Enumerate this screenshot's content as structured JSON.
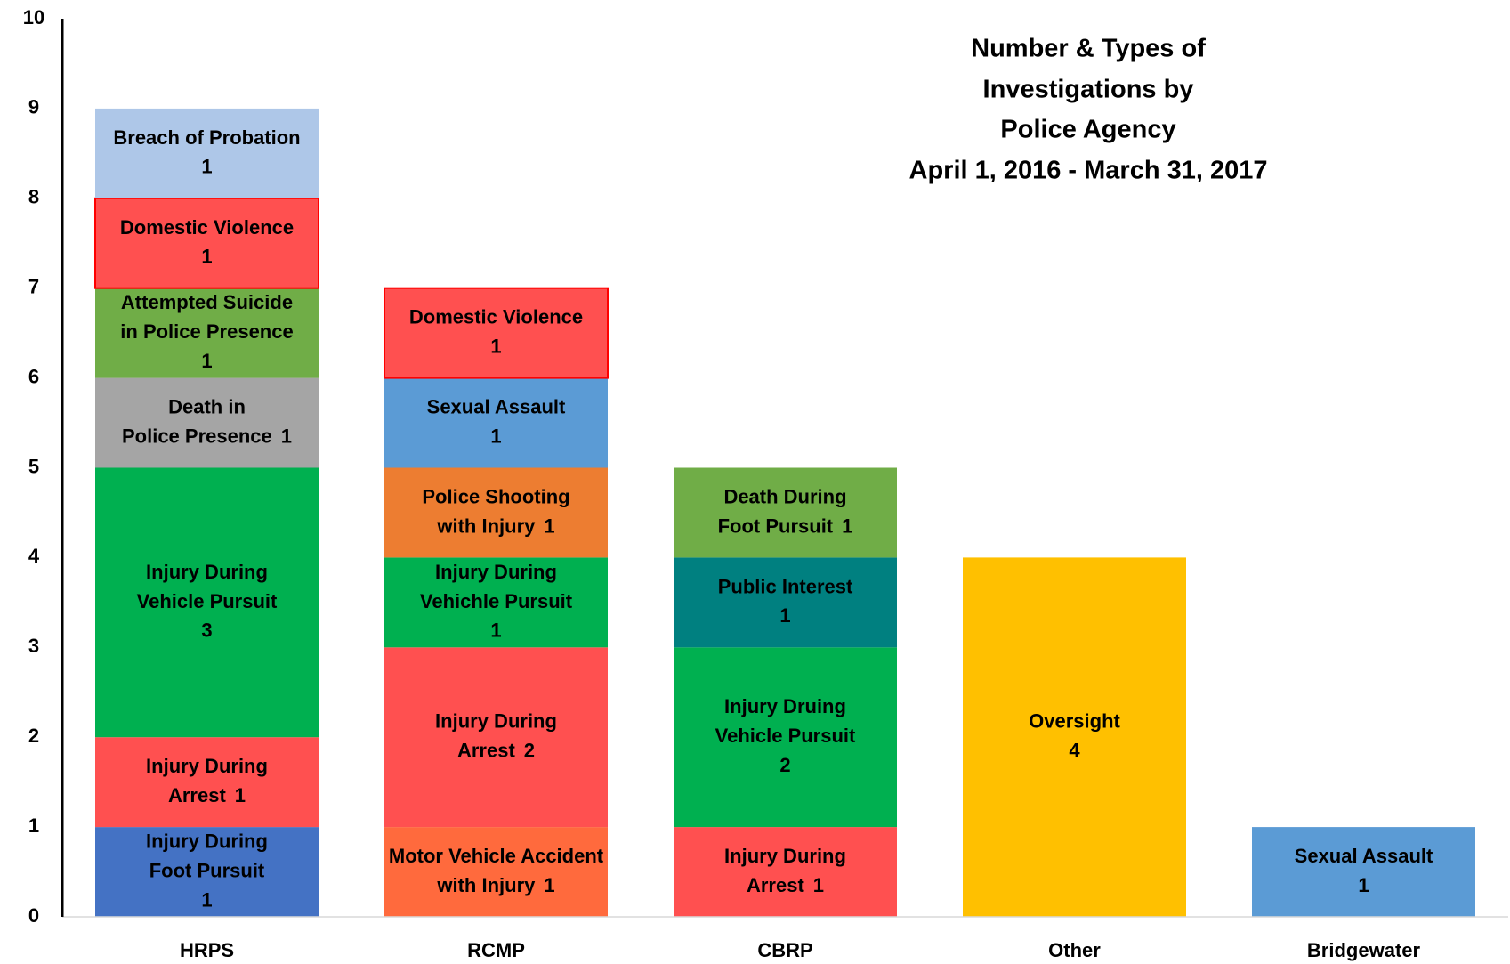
{
  "chart_data": {
    "type": "stacked-bar",
    "title": [
      "Number & Types of",
      "Investigations by",
      "Police Agency"
    ],
    "subtitle": "April 1, 2016 - March 31, 2017",
    "ylim": [
      0,
      10
    ],
    "yticks": [
      0,
      1,
      2,
      3,
      4,
      5,
      6,
      7,
      8,
      9,
      10
    ],
    "grid": false,
    "bars": [
      {
        "category": "HRPS",
        "segments": [
          {
            "label": [
              "Injury During",
              "Foot Pursuit"
            ],
            "value": 1,
            "color": "#4472c4"
          },
          {
            "label": [
              "Injury During",
              "Arrest"
            ],
            "value": 1,
            "color": "#ff5050"
          },
          {
            "label": [
              "Injury During",
              "Vehicle Pursuit"
            ],
            "value": 3,
            "color": "#00b050"
          },
          {
            "label": [
              "Death in",
              "Police Presence"
            ],
            "value": 1,
            "color": "#a5a5a5"
          },
          {
            "label": [
              "Attempted Suicide",
              "in Police Presence"
            ],
            "value": 1,
            "color": "#70ad47"
          },
          {
            "label": [
              "Domestic Violence"
            ],
            "value": 1,
            "color": "#ff5050",
            "stroke": "#ff0000"
          },
          {
            "label": [
              "Breach of Probation"
            ],
            "value": 1,
            "color": "#aec7e8"
          }
        ]
      },
      {
        "category": "RCMP",
        "segments": [
          {
            "label": [
              "Motor Vehicle Accident",
              "with Injury"
            ],
            "value": 1,
            "color": "#ff6a3d"
          },
          {
            "label": [
              "Injury During",
              "Arrest"
            ],
            "value": 2,
            "color": "#ff5050"
          },
          {
            "label": [
              "Injury During",
              "Vehichle Pursuit"
            ],
            "value": 1,
            "color": "#00b050"
          },
          {
            "label": [
              "Police Shooting",
              "with Injury"
            ],
            "value": 1,
            "color": "#ed7d31"
          },
          {
            "label": [
              "Sexual Assault"
            ],
            "value": 1,
            "color": "#5b9bd5"
          },
          {
            "label": [
              "Domestic Violence"
            ],
            "value": 1,
            "color": "#ff5050",
            "stroke": "#ff0000"
          }
        ]
      },
      {
        "category": "CBRP",
        "segments": [
          {
            "label": [
              "Injury During",
              "Arrest"
            ],
            "value": 1,
            "color": "#ff5050"
          },
          {
            "label": [
              "Injury Druing",
              "Vehicle Pursuit"
            ],
            "value": 2,
            "color": "#00b050"
          },
          {
            "label": [
              "Public Interest"
            ],
            "value": 1,
            "color": "#008080"
          },
          {
            "label": [
              "Death During",
              "Foot Pursuit"
            ],
            "value": 1,
            "color": "#70ad47"
          }
        ]
      },
      {
        "category": "Other",
        "segments": [
          {
            "label": [
              "Oversight"
            ],
            "value": 4,
            "color": "#ffc000"
          }
        ]
      },
      {
        "category": "Bridgewater",
        "segments": [
          {
            "label": [
              "Sexual Assault"
            ],
            "value": 1,
            "color": "#5b9bd5"
          }
        ]
      }
    ]
  }
}
